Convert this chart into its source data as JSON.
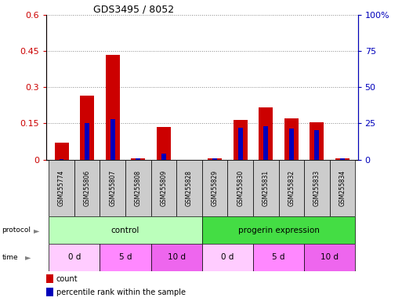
{
  "title": "GDS3495 / 8052",
  "samples": [
    "GSM255774",
    "GSM255806",
    "GSM255807",
    "GSM255808",
    "GSM255809",
    "GSM255828",
    "GSM255829",
    "GSM255830",
    "GSM255831",
    "GSM255832",
    "GSM255833",
    "GSM255834"
  ],
  "count_values": [
    0.07,
    0.265,
    0.435,
    0.005,
    0.135,
    0.0,
    0.005,
    0.165,
    0.215,
    0.17,
    0.155,
    0.005
  ],
  "percentile_values": [
    0.5,
    25.0,
    28.0,
    1.0,
    4.0,
    0.0,
    1.0,
    22.0,
    23.0,
    21.5,
    20.5,
    1.0
  ],
  "count_color": "#cc0000",
  "percentile_color": "#0000bb",
  "ylim_left": [
    0,
    0.6
  ],
  "ylim_right": [
    0,
    100
  ],
  "yticks_left": [
    0,
    0.15,
    0.3,
    0.45,
    0.6
  ],
  "ytick_labels_left": [
    "0",
    "0.15",
    "0.3",
    "0.45",
    "0.6"
  ],
  "yticks_right": [
    0,
    25,
    50,
    75,
    100
  ],
  "ytick_labels_right": [
    "0",
    "25",
    "50",
    "75",
    "100%"
  ],
  "protocol_groups": [
    {
      "label": "control",
      "start": 0,
      "end": 6,
      "color": "#bbffbb"
    },
    {
      "label": "progerin expression",
      "start": 6,
      "end": 12,
      "color": "#44dd44"
    }
  ],
  "time_groups": [
    {
      "label": "0 d",
      "start": 0,
      "end": 2,
      "color": "#ffccff"
    },
    {
      "label": "5 d",
      "start": 2,
      "end": 4,
      "color": "#ff88ff"
    },
    {
      "label": "10 d",
      "start": 4,
      "end": 6,
      "color": "#ee66ee"
    },
    {
      "label": "0 d",
      "start": 6,
      "end": 8,
      "color": "#ffccff"
    },
    {
      "label": "5 d",
      "start": 8,
      "end": 10,
      "color": "#ff88ff"
    },
    {
      "label": "10 d",
      "start": 10,
      "end": 12,
      "color": "#ee66ee"
    }
  ],
  "sample_box_color": "#cccccc",
  "background_color": "#ffffff",
  "grid_color": "#888888",
  "red_bar_width": 0.55,
  "blue_bar_width": 0.18
}
